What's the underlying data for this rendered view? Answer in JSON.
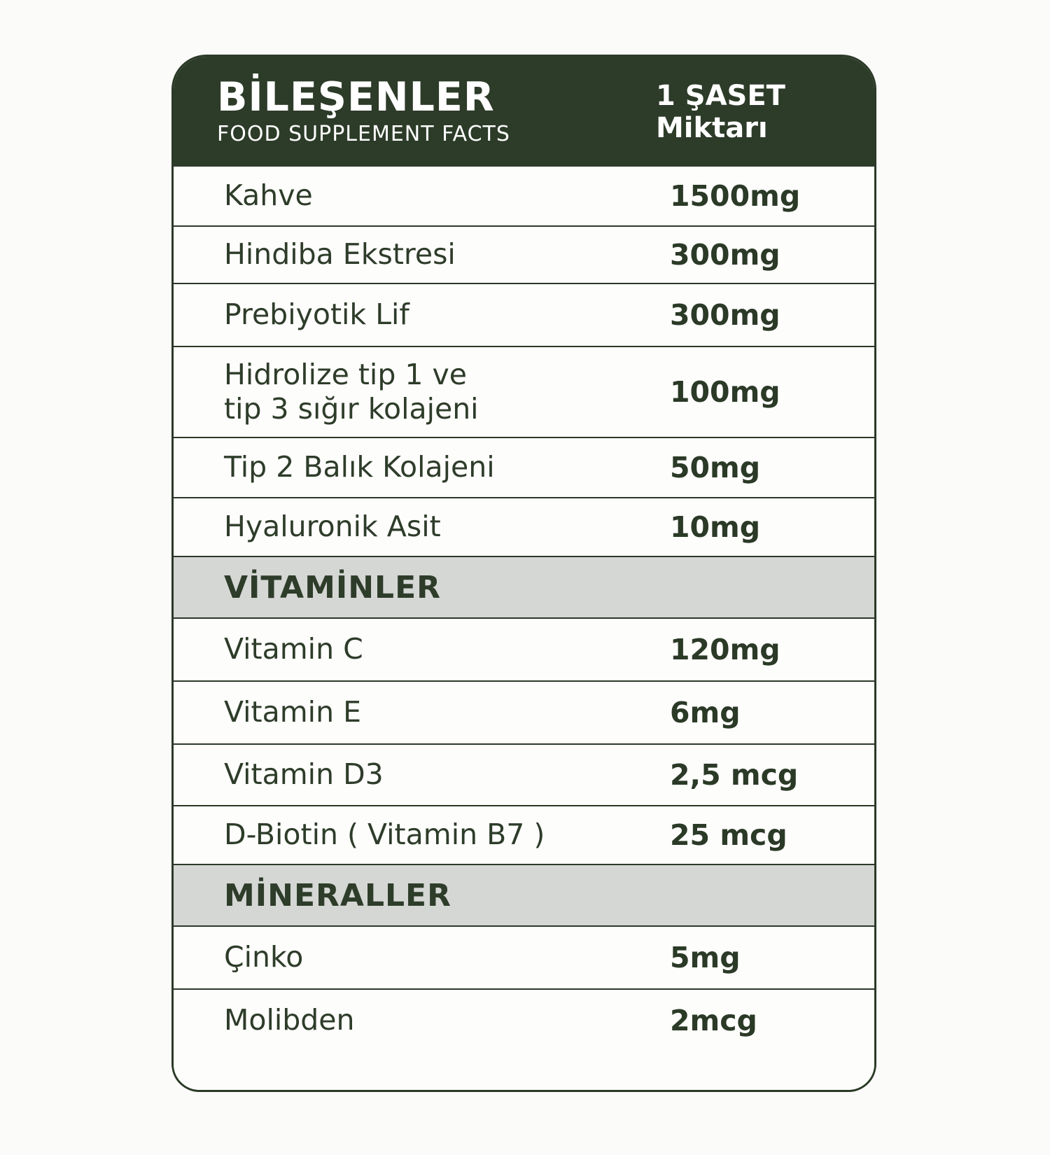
{
  "header": {
    "title": "BİLEŞENLER",
    "subtitle": "FOOD SUPPLEMENT FACTS",
    "amount_line1": "1 ŞASET",
    "amount_line2": "Miktarı"
  },
  "sections": {
    "vitamins": "VİTAMİNLER",
    "minerals": "MİNERALLER"
  },
  "rows": [
    {
      "label": "Kahve",
      "value": "1500mg"
    },
    {
      "label": "Hindiba Ekstresi",
      "value": "300mg"
    },
    {
      "label": "Prebiyotik Lif",
      "value": "300mg"
    },
    {
      "label": "Hidrolize tip 1 ve",
      "label2": "tip 3 sığır kolajeni",
      "value": "100mg"
    },
    {
      "label": "Tip 2 Balık Kolajeni",
      "value": "50mg"
    },
    {
      "label": "Hyaluronik Asit",
      "value": "10mg"
    },
    {
      "label": "Vitamin C",
      "value": "120mg"
    },
    {
      "label": "Vitamin E",
      "value": "6mg"
    },
    {
      "label": "Vitamin D3",
      "value": "2,5 mcg"
    },
    {
      "label": "D-Biotin ( Vitamin B7 )",
      "value": "25 mcg"
    },
    {
      "label": "Çinko",
      "value": "5mg"
    },
    {
      "label": "Molibden",
      "value": "2mcg"
    }
  ],
  "colors": {
    "header_bg": "#2d3b29",
    "text_green": "#2e3c2a",
    "value_green": "#2b3927",
    "section_band_bg": "#d5d7d4",
    "row_bg": "#fdfdfb",
    "border": "#2b3927",
    "page_bg": "#fbfbf9",
    "header_text": "#ffffff"
  }
}
